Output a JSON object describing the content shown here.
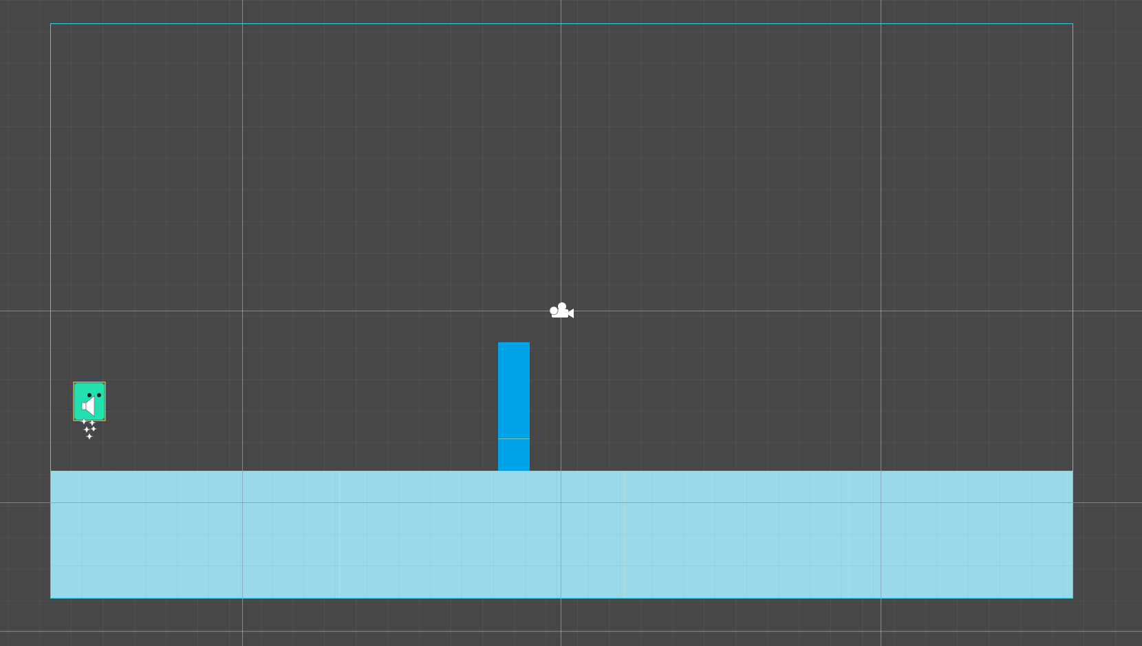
{
  "scene": {
    "title": "",
    "background_color": "#474747",
    "ground_color": "#9ad9ea",
    "pillar_color": "#00a2e8",
    "camera_bounds_color": "#35d3e3",
    "player_color": "#22e0b0"
  },
  "objects": [
    {
      "name": "camera-bounds",
      "kind": "rectangle-outline"
    },
    {
      "name": "ground-tilemap",
      "kind": "tilemap"
    },
    {
      "name": "blue-pillar",
      "kind": "obstacle"
    },
    {
      "name": "player-sprite",
      "kind": "character"
    },
    {
      "name": "camera-gizmo-icon",
      "kind": "camera-icon"
    },
    {
      "name": "audio-source-icon",
      "kind": "speaker-icon"
    },
    {
      "name": "particle-emitter-icon",
      "kind": "particles-icon"
    }
  ]
}
